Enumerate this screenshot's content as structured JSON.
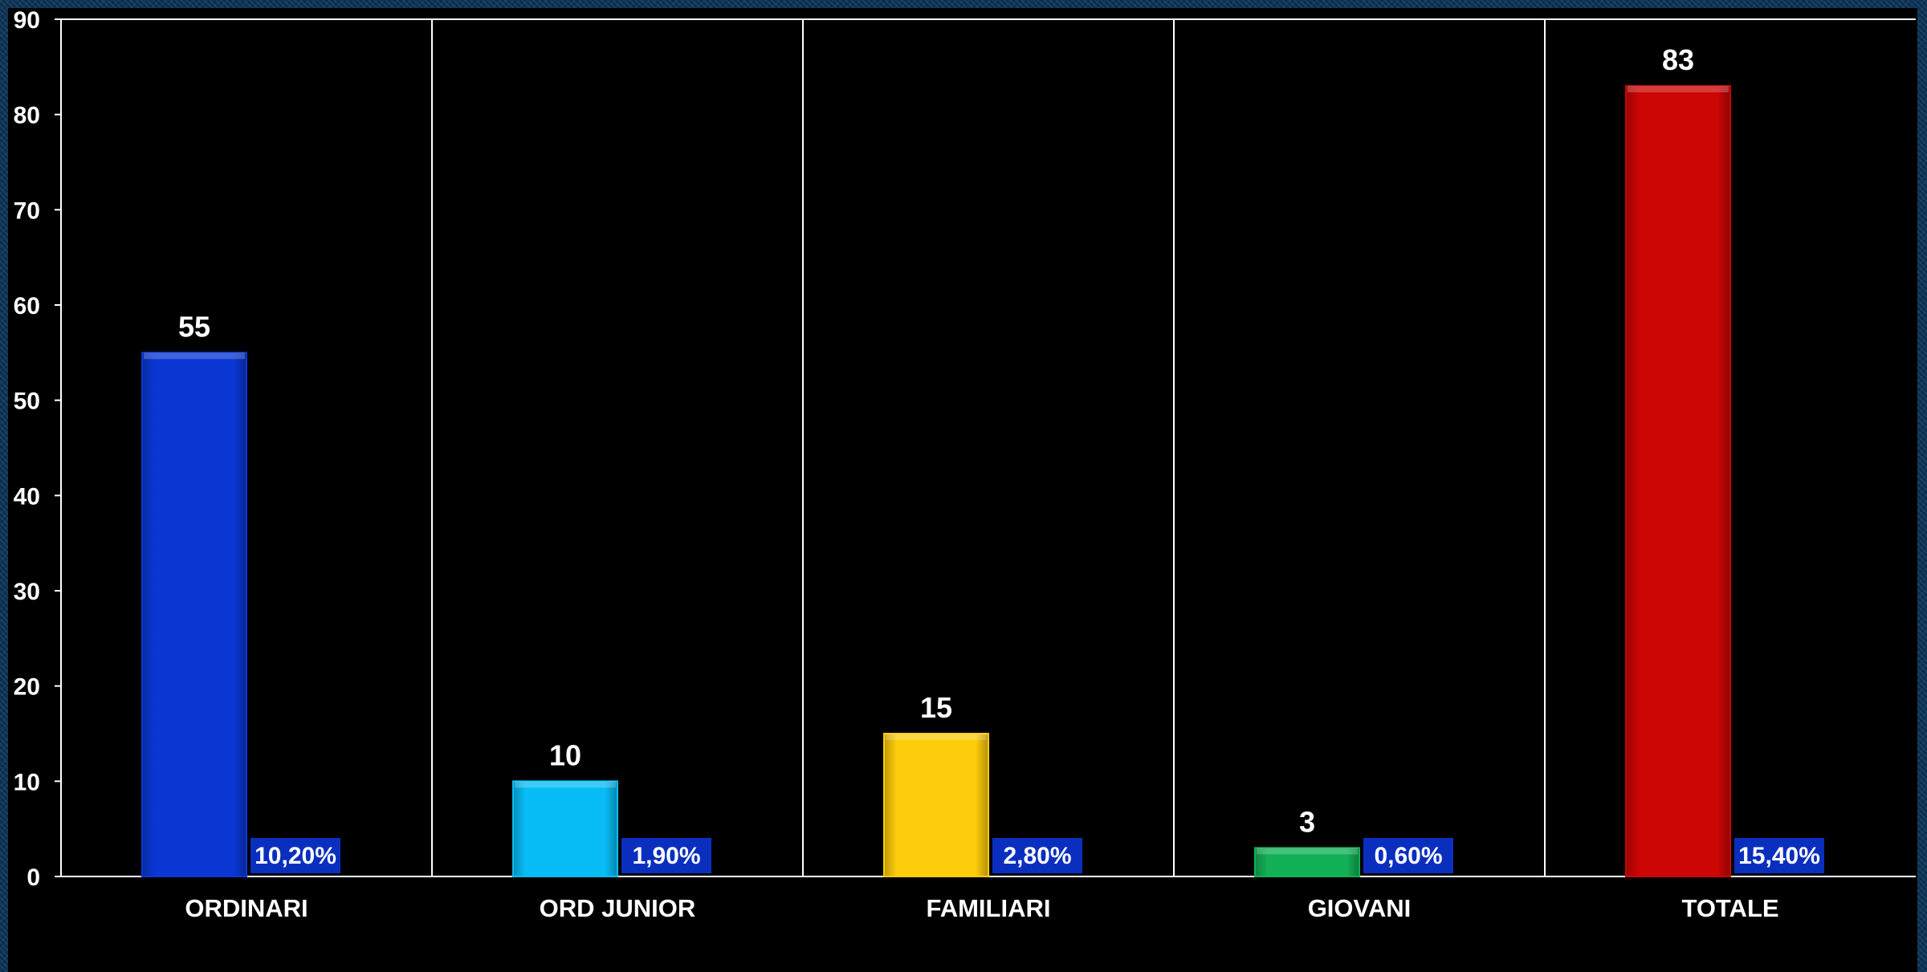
{
  "chart_data": {
    "type": "bar",
    "categories": [
      "ORDINARI",
      "ORD JUNIOR",
      "FAMILIARI",
      "GIOVANI",
      "TOTALE"
    ],
    "values": [
      55,
      10,
      15,
      3,
      83
    ],
    "percent_labels": [
      "10,20%",
      "1,90%",
      "2,80%",
      "0,60%",
      "15,40%"
    ],
    "bar_colors": [
      "#0a37d4",
      "#08bdf6",
      "#fdcc0a",
      "#12b057",
      "#cc0505"
    ],
    "label_box_color": "#0a2fbf",
    "yticks": [
      "0",
      "10",
      "20",
      "30",
      "40",
      "50",
      "60",
      "70",
      "80",
      "90"
    ],
    "ylim": [
      0,
      90
    ],
    "grid": "vertical category dividers",
    "legend": "none"
  }
}
